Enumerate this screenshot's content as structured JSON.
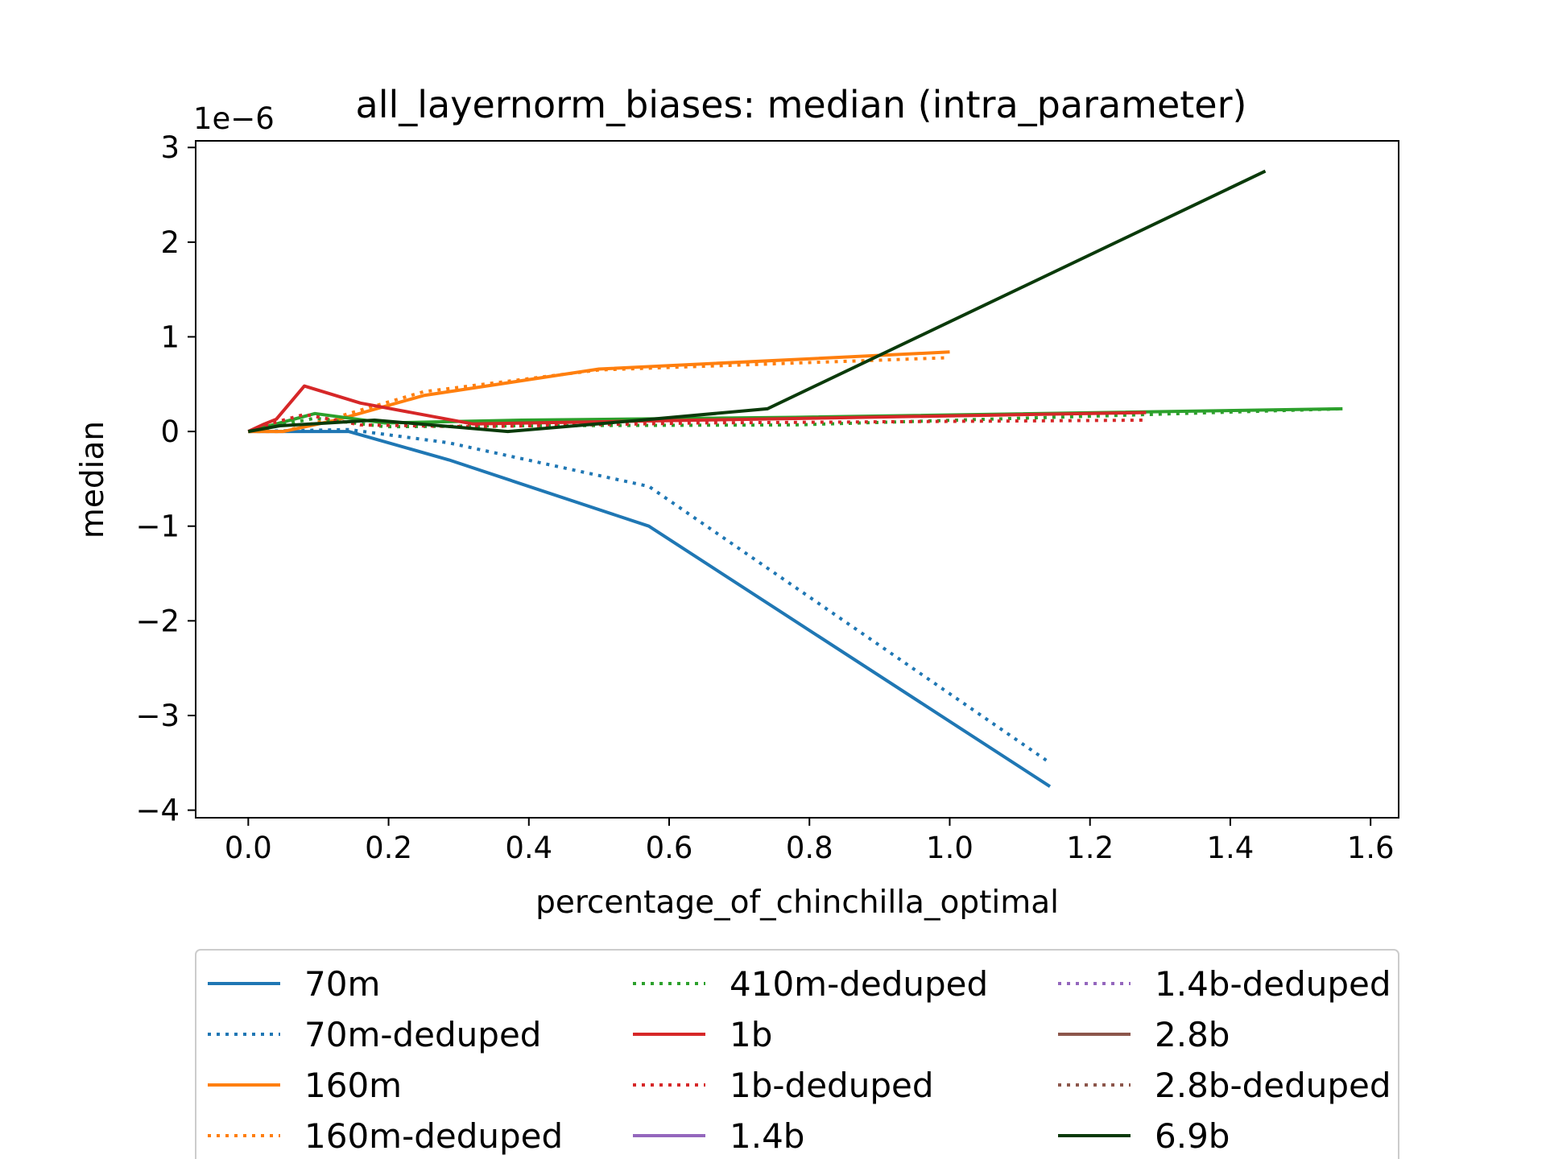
{
  "chart_data": {
    "type": "line",
    "title": "all_layernorm_biases: median (intra_parameter)",
    "xlabel": "percentage_of_chinchilla_optimal",
    "ylabel": "median",
    "y_offset_label": "1e−6",
    "xlim": [
      -0.075,
      1.64
    ],
    "ylim": [
      -4.08,
      3.07
    ],
    "x_ticks": [
      0.0,
      0.2,
      0.4,
      0.6,
      0.8,
      1.0,
      1.2,
      1.4,
      1.6
    ],
    "x_tick_labels": [
      "0.0",
      "0.2",
      "0.4",
      "0.6",
      "0.8",
      "1.0",
      "1.2",
      "1.4",
      "1.6"
    ],
    "y_ticks": [
      -4,
      -3,
      -2,
      -1,
      0,
      1,
      2,
      3
    ],
    "y_tick_labels": [
      "−4",
      "−3",
      "−2",
      "−1",
      "0",
      "1",
      "2",
      "3"
    ],
    "grid": false,
    "legend_position": "below",
    "legend_columns": 3,
    "series": [
      {
        "name": "70m",
        "color": "#1f77b4",
        "dash": "solid",
        "x": [
          0.0,
          0.143,
          0.286,
          0.571,
          1.143
        ],
        "y": [
          0.0,
          0.0,
          -0.3,
          -1.0,
          -3.75
        ]
      },
      {
        "name": "70m-deduped",
        "color": "#1f77b4",
        "dash": "dotted",
        "x": [
          0.0,
          0.143,
          0.286,
          0.571,
          1.143
        ],
        "y": [
          0.0,
          0.02,
          -0.12,
          -0.58,
          -3.5
        ]
      },
      {
        "name": "160m",
        "color": "#ff7f0e",
        "dash": "solid",
        "x": [
          0.0,
          0.05,
          0.125,
          0.25,
          0.5,
          1.0
        ],
        "y": [
          0.0,
          0.0,
          0.12,
          0.38,
          0.66,
          0.84
        ]
      },
      {
        "name": "160m-deduped",
        "color": "#ff7f0e",
        "dash": "dotted",
        "x": [
          0.0,
          0.05,
          0.125,
          0.25,
          0.5,
          1.0
        ],
        "y": [
          0.0,
          0.0,
          0.15,
          0.42,
          0.65,
          0.78
        ]
      },
      {
        "name": "410m-deduped",
        "color": "#2ca02c",
        "dash": "dotted",
        "x": [
          0.0,
          0.095,
          0.195,
          0.39,
          0.78,
          1.56
        ],
        "y": [
          0.0,
          0.14,
          0.05,
          0.06,
          0.07,
          0.24
        ]
      },
      {
        "name": "410m",
        "color": "#2ca02c",
        "dash": "solid",
        "legend": false,
        "x": [
          0.0,
          0.095,
          0.195,
          0.39,
          0.78,
          1.56
        ],
        "y": [
          0.0,
          0.19,
          0.09,
          0.12,
          0.15,
          0.24
        ]
      },
      {
        "name": "1b",
        "color": "#d62728",
        "dash": "solid",
        "x": [
          0.0,
          0.02,
          0.04,
          0.08,
          0.16,
          0.32,
          0.64,
          1.28
        ],
        "y": [
          0.0,
          0.07,
          0.13,
          0.48,
          0.3,
          0.08,
          0.12,
          0.2
        ]
      },
      {
        "name": "1b-deduped",
        "color": "#d62728",
        "dash": "dotted",
        "x": [
          0.0,
          0.02,
          0.04,
          0.08,
          0.16,
          0.32,
          0.64,
          1.28
        ],
        "y": [
          0.0,
          0.05,
          0.1,
          0.18,
          0.07,
          0.05,
          0.09,
          0.12
        ]
      },
      {
        "name": "1.4b",
        "color": "#9467bd",
        "dash": "solid",
        "x": [],
        "y": []
      },
      {
        "name": "1.4b-deduped",
        "color": "#9467bd",
        "dash": "dotted",
        "x": [],
        "y": []
      },
      {
        "name": "2.8b",
        "color": "#8c564b",
        "dash": "solid",
        "x": [],
        "y": []
      },
      {
        "name": "2.8b-deduped",
        "color": "#8c564b",
        "dash": "dotted",
        "x": [],
        "y": []
      },
      {
        "name": "6.9b",
        "color": "#0a3a0a",
        "dash": "solid",
        "x": [
          0.0,
          0.045,
          0.09,
          0.18,
          0.37,
          0.56,
          0.74,
          1.45
        ],
        "y": [
          0.0,
          0.06,
          0.08,
          0.12,
          0.0,
          0.12,
          0.24,
          2.75
        ]
      }
    ]
  }
}
